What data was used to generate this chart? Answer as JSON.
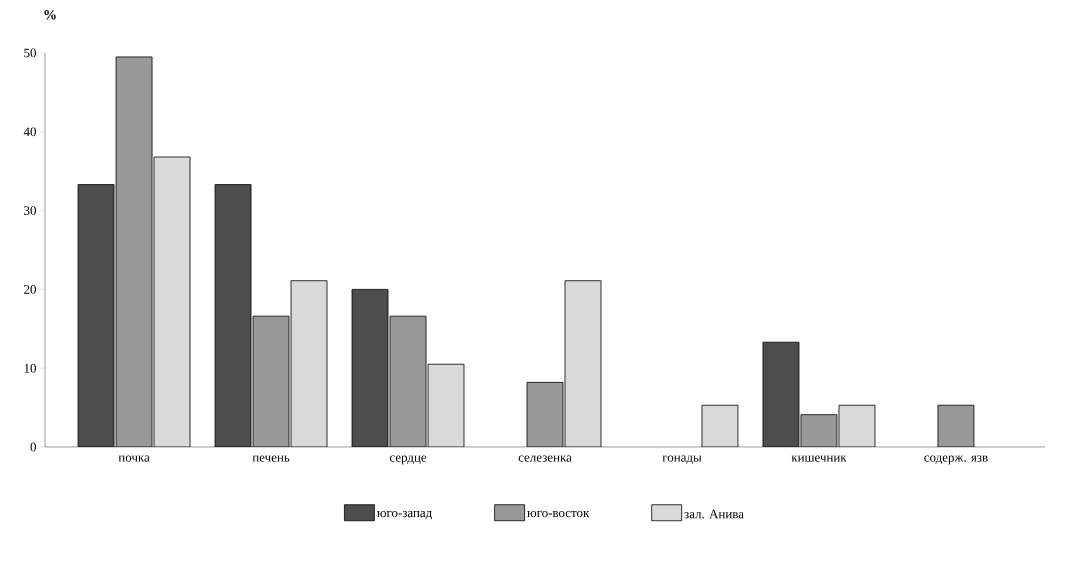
{
  "chart_data": {
    "type": "bar",
    "ylabel": "%",
    "categories": [
      "почка",
      "печень",
      "сердце",
      "селезенка",
      "гонады",
      "кишечник",
      "содерж. язв"
    ],
    "series": [
      {
        "name": "юго-запад",
        "color": "#4d4d4d",
        "values": [
          33.3,
          33.3,
          20,
          0,
          0,
          13.3,
          0
        ]
      },
      {
        "name": "юго-восток",
        "color": "#999999",
        "values": [
          49.5,
          16.6,
          16.6,
          8.2,
          0,
          4.1,
          5.3
        ]
      },
      {
        "name": "зал. Анива",
        "color": "#d9d9d9",
        "values": [
          36.8,
          21.1,
          10.5,
          21.1,
          5.3,
          5.3,
          0
        ]
      }
    ],
    "ylim": [
      0,
      50
    ],
    "yticks": [
      0,
      10,
      20,
      30,
      40,
      50
    ],
    "grid": false,
    "legend": "bottom"
  }
}
